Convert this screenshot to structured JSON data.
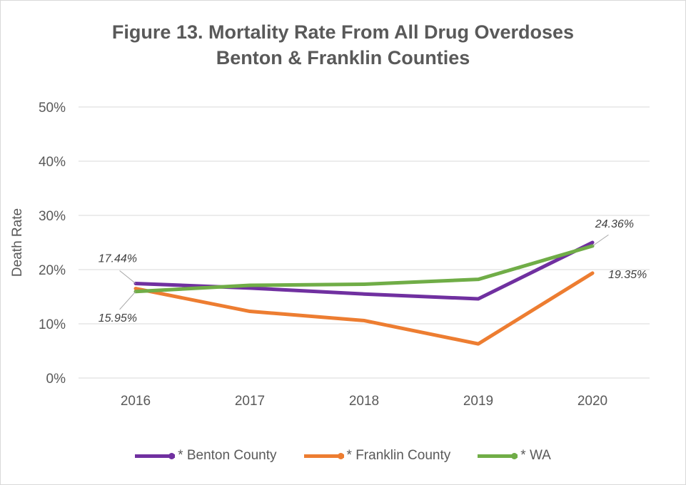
{
  "chart_data": {
    "type": "line",
    "title": "Figure 13. Mortality Rate From All Drug Overdoses",
    "subtitle": "Benton & Franklin Counties",
    "xlabel": "",
    "ylabel": "Death Rate",
    "categories": [
      "2016",
      "2017",
      "2018",
      "2019",
      "2020"
    ],
    "ylim": [
      0,
      50
    ],
    "yticks": [
      "0%",
      "10%",
      "20%",
      "30%",
      "40%",
      "50%"
    ],
    "grid": true,
    "legend_position": "bottom",
    "series": [
      {
        "name": "* Benton County",
        "color": "#7030a0",
        "values": [
          17.44,
          16.6,
          15.5,
          14.6,
          25.0
        ]
      },
      {
        "name": "* Franklin County",
        "color": "#ed7d31",
        "values": [
          16.5,
          12.3,
          10.6,
          6.3,
          19.35
        ]
      },
      {
        "name": "* WA",
        "color": "#70ad47",
        "values": [
          15.95,
          17.1,
          17.3,
          18.2,
          24.36
        ]
      }
    ],
    "annotations": [
      {
        "text": "17.44%",
        "series": 0,
        "index": 0
      },
      {
        "text": "15.95%",
        "series": 2,
        "index": 0
      },
      {
        "text": "24.36%",
        "series": 2,
        "index": 4
      },
      {
        "text": "19.35%",
        "series": 1,
        "index": 4
      }
    ]
  }
}
